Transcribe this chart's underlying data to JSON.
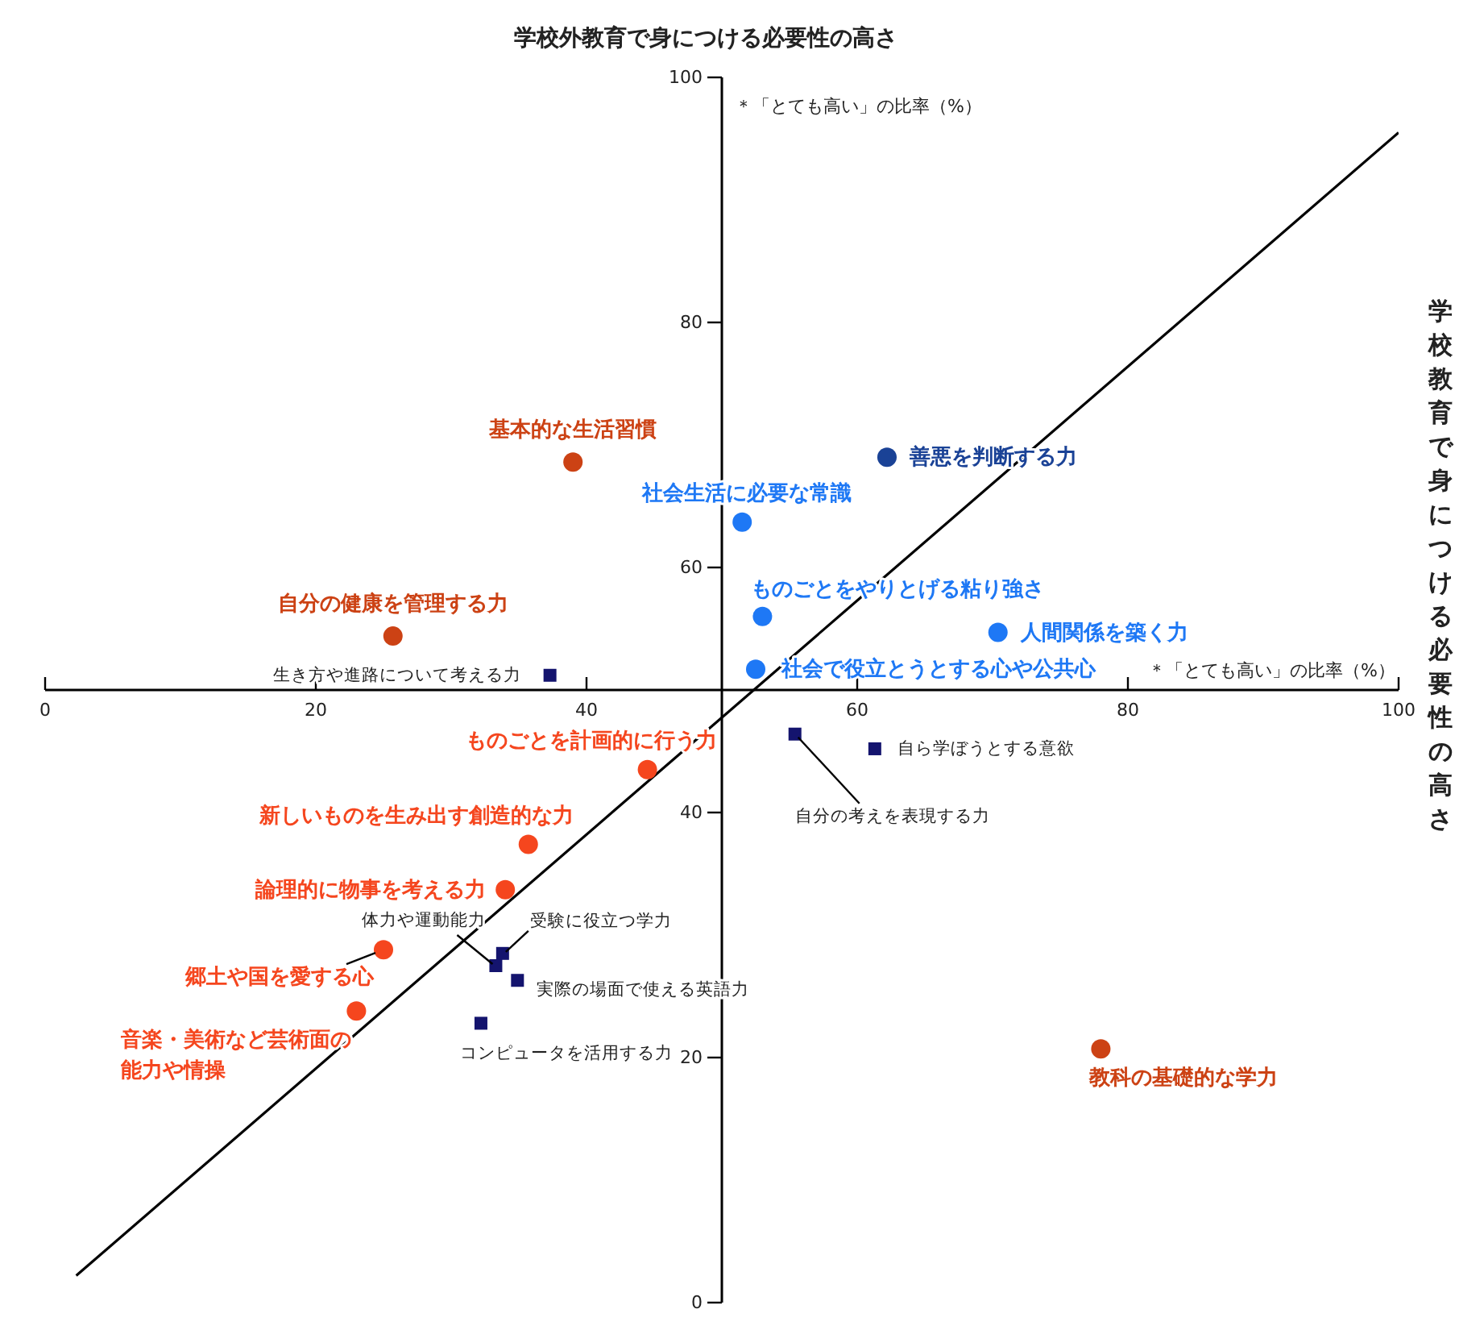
{
  "chart_data": {
    "type": "scatter",
    "ylabel": "学校外教育で身につける必要性の高さ",
    "xlabel": "学校教育で身につける必要性の高さ",
    "annotations": [
      "＊「とても高い」の比率（%）",
      "＊「とても高い」の比率（%）"
    ],
    "xlim": [
      0,
      100
    ],
    "ylim": [
      0,
      100
    ],
    "xticks": [
      0,
      20,
      40,
      60,
      80,
      100
    ],
    "yticks": [
      0,
      20,
      40,
      60,
      80,
      100
    ],
    "grid": false,
    "legend": false,
    "series": [
      {
        "color": "#cc4214",
        "marker": "circle",
        "x": [
          39,
          25.7,
          78
        ],
        "values": [
          68.6,
          54.4,
          20.7
        ],
        "value_labels": [
          "基本的な生活習慣",
          "自分の健康を管理する力",
          "教科の基礎的な学力"
        ]
      },
      {
        "color": "#f5461e",
        "marker": "circle",
        "x": [
          44.5,
          35.7,
          34,
          25,
          23
        ],
        "values": [
          43.5,
          37.4,
          33.7,
          28.8,
          23.8
        ],
        "value_labels": [
          "ものごとを計画的に行う力",
          "新しいものを生み出す創造的な力",
          "論理的に物事を考える力",
          "郷土や国を愛する心",
          "音楽・美術など芸術面の能力や情操"
        ]
      },
      {
        "color": "#1e78f5",
        "marker": "circle",
        "x": [
          51.5,
          53,
          70.4,
          52.5
        ],
        "values": [
          63.7,
          56,
          54.7,
          51.7
        ],
        "value_labels": [
          "社会生活に必要な常識",
          "ものごとをやりとげる粘り強さ",
          "人間関係を築く力",
          "社会で役立とうとする心や公共心"
        ]
      },
      {
        "color": "#1a4296",
        "marker": "circle",
        "x": [
          62.2
        ],
        "values": [
          69
        ],
        "value_labels": [
          "善悪を判断する力"
        ]
      },
      {
        "color": "#14146e",
        "marker": "square",
        "x": [
          37.3,
          61.3,
          55.4,
          33.3,
          33.8,
          34.9,
          32.2
        ],
        "values": [
          51.2,
          45.2,
          46.4,
          27.5,
          28.5,
          26.3,
          22.8
        ],
        "value_labels": [
          "生き方や進路について考える力",
          "自ら学ぼうとする意欲",
          "自分の考えを表現する力",
          "体力や運動能力",
          "受験に役立つ学力",
          "実際の場面で使える英語力",
          "コンピュータを活用する力"
        ]
      },
      {
        "type": "line",
        "color": "#000000",
        "marker": "none",
        "x": [
          2.3,
          100
        ],
        "values": [
          2.2,
          95.5
        ]
      }
    ]
  }
}
